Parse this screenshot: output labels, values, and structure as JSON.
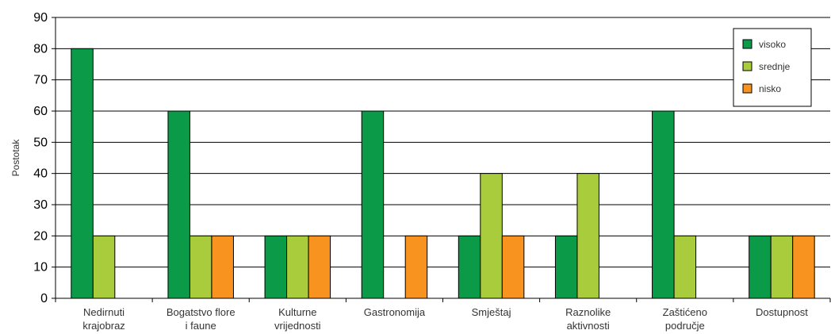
{
  "chart_data": {
    "type": "bar",
    "ylabel": "Postotak",
    "xlabel": "",
    "ylim": [
      0,
      90
    ],
    "yticks": [
      0,
      10,
      20,
      30,
      40,
      50,
      60,
      70,
      80,
      90
    ],
    "grid": true,
    "legend_position": "top-right",
    "categories": [
      [
        "Nedirnuti",
        "krajobraz"
      ],
      [
        "Bogatstvo flore",
        "i faune"
      ],
      [
        "Kulturne",
        "vrijednosti"
      ],
      [
        "Gastronomija"
      ],
      [
        "Smještaj"
      ],
      [
        "Raznolike",
        "aktivnosti"
      ],
      [
        "Zaštićeno",
        "područje"
      ],
      [
        "Dostupnost"
      ]
    ],
    "series": [
      {
        "name": "visoko",
        "color": "#0a9a48",
        "values": [
          80,
          60,
          20,
          60,
          20,
          20,
          60,
          20
        ]
      },
      {
        "name": "srednje",
        "color": "#a8cc3c",
        "values": [
          20,
          20,
          20,
          0,
          40,
          40,
          20,
          20
        ]
      },
      {
        "name": "nisko",
        "color": "#f7931e",
        "values": [
          0,
          20,
          20,
          20,
          20,
          0,
          0,
          20
        ]
      }
    ]
  }
}
